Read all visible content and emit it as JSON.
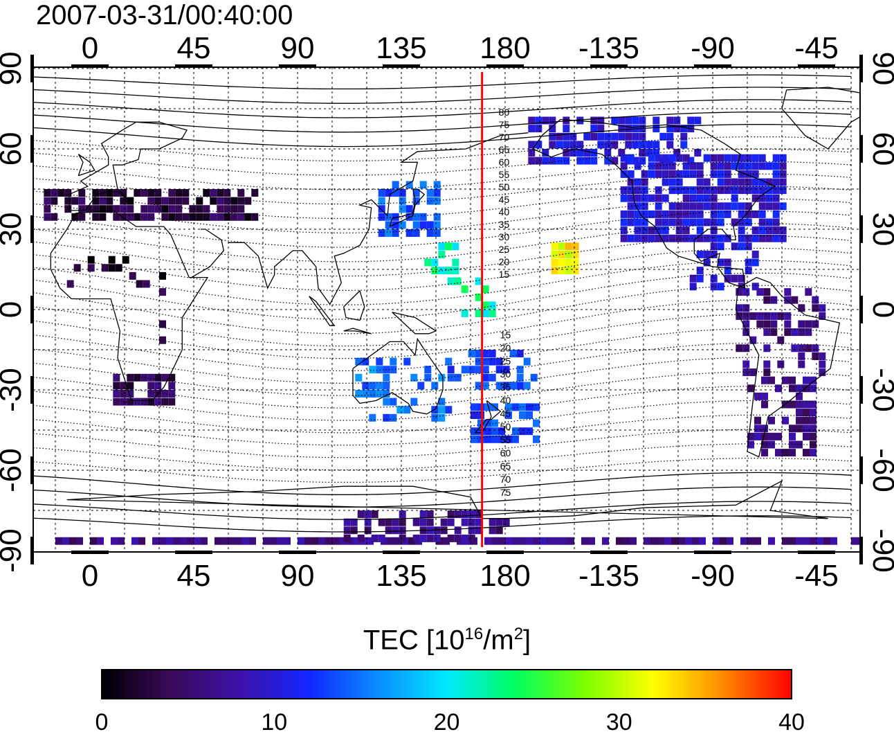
{
  "timestamp": "2007-03-31/00:40:00",
  "map": {
    "lon_ticks": [
      {
        "lon": 0,
        "label": "0"
      },
      {
        "lon": 45,
        "label": "45"
      },
      {
        "lon": 90,
        "label": "90"
      },
      {
        "lon": 135,
        "label": "135"
      },
      {
        "lon": 180,
        "label": "180"
      },
      {
        "lon": 225,
        "label": "-135"
      },
      {
        "lon": 270,
        "label": "-90"
      },
      {
        "lon": 315,
        "label": "-45"
      }
    ],
    "lat_ticks": [
      {
        "lat": 90,
        "label": "90"
      },
      {
        "lat": 60,
        "label": "60"
      },
      {
        "lat": 30,
        "label": "30"
      },
      {
        "lat": 0,
        "label": "0"
      },
      {
        "lat": -30,
        "label": "-30"
      },
      {
        "lat": -60,
        "label": "-60"
      },
      {
        "lat": -90,
        "label": "-90"
      }
    ],
    "terminator_lon": 170,
    "contour_labels_north": [
      "80",
      "75",
      "70",
      "65",
      "60",
      "55",
      "50",
      "45",
      "40",
      "35",
      "30",
      "25",
      "20",
      "15"
    ],
    "contour_labels_south": [
      "15",
      "20",
      "25",
      "30",
      "35",
      "40",
      "45",
      "50",
      "55",
      "60",
      "65",
      "70",
      "75"
    ]
  },
  "colorbar": {
    "title_main": "TEC  [10",
    "title_exp": "16",
    "title_mid": "/m",
    "title_exp2": "2",
    "title_end": "]",
    "min": 0,
    "max": 40,
    "ticks": [
      "0",
      "10",
      "20",
      "30",
      "40"
    ],
    "colors": [
      "#000000",
      "#3a0a5a",
      "#3d12a8",
      "#1226ff",
      "#0a8cff",
      "#00e8ff",
      "#00ff60",
      "#7cff00",
      "#ffff00",
      "#ff8a00",
      "#ff0000"
    ]
  },
  "chart_data": {
    "type": "heatmap",
    "title": "2007-03-31/00:40:00",
    "quantity": "TEC",
    "units": "10^16/m^2",
    "value_range": [
      0,
      40
    ],
    "regions": [
      {
        "name": "Europe",
        "tec": 3
      },
      {
        "name": "Africa",
        "tec": 2
      },
      {
        "name": "Southern Africa",
        "tec": 4
      },
      {
        "name": "North America",
        "tec": 10
      },
      {
        "name": "South America",
        "tec": 6
      },
      {
        "name": "Japan",
        "tec": 14
      },
      {
        "name": "Western Pacific",
        "tec": 22
      },
      {
        "name": "Australia",
        "tec": 15
      },
      {
        "name": "New Zealand",
        "tec": 13
      },
      {
        "name": "Central Pacific (Hawaii)",
        "tec": 32
      },
      {
        "name": "Antarctica",
        "tec": 6
      }
    ]
  }
}
